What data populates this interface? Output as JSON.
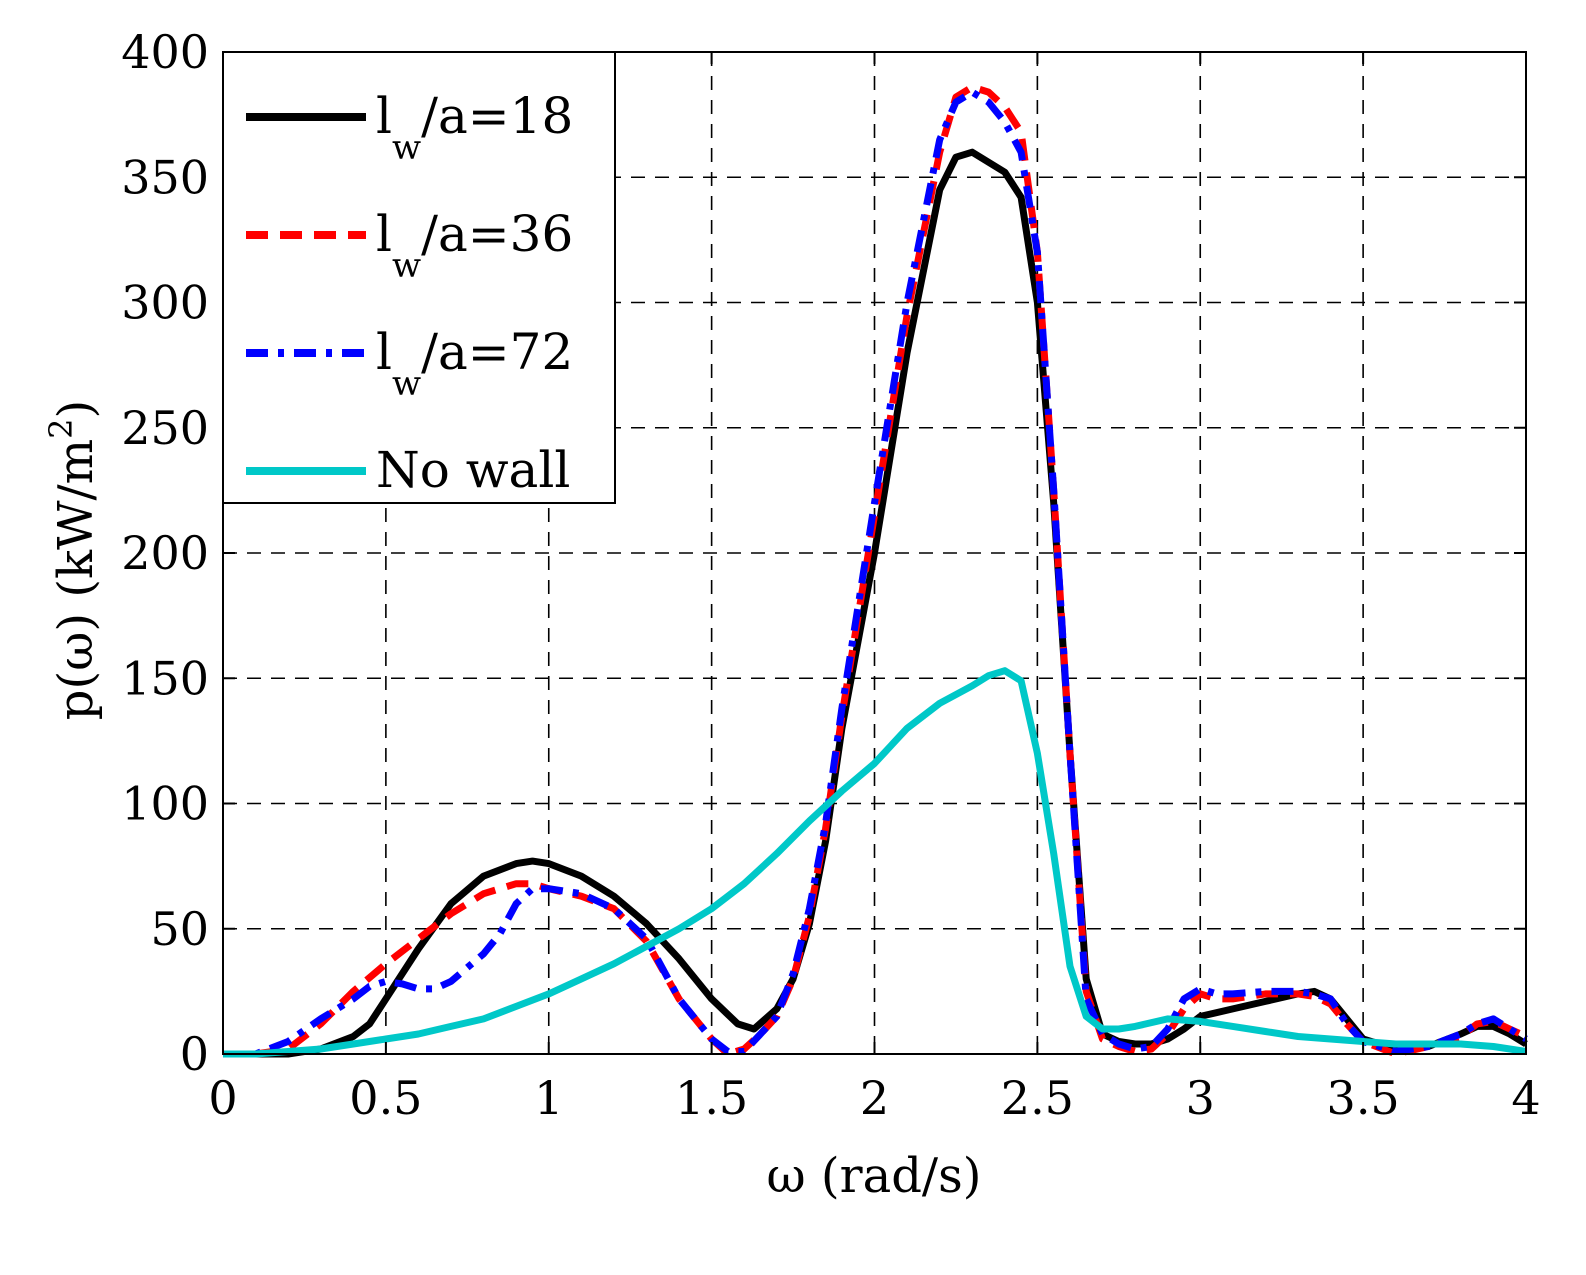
{
  "chart_data": {
    "type": "line",
    "title": "",
    "xlabel": "ω (rad/s)",
    "ylabel_main": "p(ω) (kW/m",
    "ylabel_sup": "2",
    "ylabel_close": ")",
    "xlim": [
      0,
      4
    ],
    "ylim": [
      0,
      400
    ],
    "grid": true,
    "legend_position": "top-left",
    "xticks": [
      0,
      0.5,
      1,
      1.5,
      2,
      2.5,
      3,
      3.5,
      4
    ],
    "xtick_labels": [
      "0",
      "0.5",
      "1",
      "1.5",
      "2",
      "2.5",
      "3",
      "3.5",
      "4"
    ],
    "yticks": [
      0,
      50,
      100,
      150,
      200,
      250,
      300,
      350,
      400
    ],
    "ytick_labels": [
      "0",
      "50",
      "100",
      "150",
      "200",
      "250",
      "300",
      "350",
      "400"
    ],
    "series": [
      {
        "name": "lw/a=18",
        "label_main": "l",
        "label_sub": "w",
        "label_rest": "/a=18",
        "color": "#000000",
        "dash": "solid",
        "points": [
          [
            0,
            0
          ],
          [
            0.1,
            0
          ],
          [
            0.2,
            0
          ],
          [
            0.3,
            2
          ],
          [
            0.4,
            7
          ],
          [
            0.45,
            12
          ],
          [
            0.5,
            22
          ],
          [
            0.6,
            42
          ],
          [
            0.7,
            60
          ],
          [
            0.8,
            71
          ],
          [
            0.9,
            76
          ],
          [
            0.95,
            77
          ],
          [
            1.0,
            76
          ],
          [
            1.1,
            71
          ],
          [
            1.2,
            63
          ],
          [
            1.3,
            52
          ],
          [
            1.4,
            38
          ],
          [
            1.5,
            22
          ],
          [
            1.58,
            12
          ],
          [
            1.63,
            10
          ],
          [
            1.7,
            18
          ],
          [
            1.75,
            30
          ],
          [
            1.8,
            52
          ],
          [
            1.85,
            85
          ],
          [
            1.9,
            130
          ],
          [
            2.0,
            200
          ],
          [
            2.1,
            280
          ],
          [
            2.2,
            345
          ],
          [
            2.25,
            358
          ],
          [
            2.3,
            360
          ],
          [
            2.35,
            356
          ],
          [
            2.4,
            352
          ],
          [
            2.45,
            342
          ],
          [
            2.5,
            300
          ],
          [
            2.55,
            220
          ],
          [
            2.6,
            120
          ],
          [
            2.65,
            30
          ],
          [
            2.7,
            8
          ],
          [
            2.75,
            5
          ],
          [
            2.8,
            4
          ],
          [
            2.85,
            4
          ],
          [
            2.9,
            6
          ],
          [
            2.95,
            10
          ],
          [
            3.0,
            15
          ],
          [
            3.1,
            18
          ],
          [
            3.2,
            21
          ],
          [
            3.3,
            24
          ],
          [
            3.35,
            25
          ],
          [
            3.4,
            22
          ],
          [
            3.45,
            14
          ],
          [
            3.5,
            6
          ],
          [
            3.6,
            2
          ],
          [
            3.7,
            3
          ],
          [
            3.8,
            8
          ],
          [
            3.85,
            11
          ],
          [
            3.9,
            11
          ],
          [
            3.95,
            8
          ],
          [
            4.0,
            4
          ]
        ]
      },
      {
        "name": "lw/a=36",
        "label_main": "l",
        "label_sub": "w",
        "label_rest": "/a=36",
        "color": "#ff0000",
        "dash": "dashed",
        "points": [
          [
            0,
            0
          ],
          [
            0.1,
            0
          ],
          [
            0.2,
            2
          ],
          [
            0.3,
            12
          ],
          [
            0.4,
            25
          ],
          [
            0.5,
            36
          ],
          [
            0.6,
            46
          ],
          [
            0.7,
            56
          ],
          [
            0.8,
            64
          ],
          [
            0.9,
            68
          ],
          [
            0.95,
            68
          ],
          [
            1.0,
            66
          ],
          [
            1.1,
            63
          ],
          [
            1.2,
            58
          ],
          [
            1.3,
            45
          ],
          [
            1.4,
            22
          ],
          [
            1.5,
            6
          ],
          [
            1.55,
            0
          ],
          [
            1.6,
            2
          ],
          [
            1.65,
            8
          ],
          [
            1.7,
            15
          ],
          [
            1.75,
            30
          ],
          [
            1.8,
            55
          ],
          [
            1.85,
            90
          ],
          [
            1.9,
            135
          ],
          [
            2.0,
            215
          ],
          [
            2.1,
            295
          ],
          [
            2.2,
            360
          ],
          [
            2.25,
            382
          ],
          [
            2.3,
            386
          ],
          [
            2.35,
            384
          ],
          [
            2.4,
            378
          ],
          [
            2.45,
            368
          ],
          [
            2.5,
            320
          ],
          [
            2.55,
            225
          ],
          [
            2.6,
            120
          ],
          [
            2.65,
            25
          ],
          [
            2.7,
            6
          ],
          [
            2.75,
            3
          ],
          [
            2.8,
            1
          ],
          [
            2.85,
            2
          ],
          [
            2.9,
            8
          ],
          [
            2.95,
            18
          ],
          [
            3.0,
            24
          ],
          [
            3.05,
            22
          ],
          [
            3.1,
            22
          ],
          [
            3.2,
            24
          ],
          [
            3.3,
            24
          ],
          [
            3.35,
            23
          ],
          [
            3.4,
            20
          ],
          [
            3.45,
            12
          ],
          [
            3.5,
            5
          ],
          [
            3.6,
            0
          ],
          [
            3.7,
            3
          ],
          [
            3.8,
            7
          ],
          [
            3.85,
            12
          ],
          [
            3.9,
            13
          ],
          [
            3.95,
            10
          ],
          [
            4.0,
            7
          ]
        ]
      },
      {
        "name": "lw/a=72",
        "label_main": "l",
        "label_sub": "w",
        "label_rest": "/a=72",
        "color": "#0000ff",
        "dash": "dashdot",
        "points": [
          [
            0,
            0
          ],
          [
            0.1,
            0
          ],
          [
            0.2,
            5
          ],
          [
            0.3,
            14
          ],
          [
            0.4,
            22
          ],
          [
            0.45,
            27
          ],
          [
            0.5,
            29
          ],
          [
            0.55,
            28
          ],
          [
            0.6,
            26
          ],
          [
            0.65,
            26
          ],
          [
            0.7,
            29
          ],
          [
            0.8,
            40
          ],
          [
            0.85,
            48
          ],
          [
            0.9,
            60
          ],
          [
            0.95,
            66
          ],
          [
            1.0,
            66
          ],
          [
            1.1,
            64
          ],
          [
            1.2,
            58
          ],
          [
            1.3,
            46
          ],
          [
            1.4,
            22
          ],
          [
            1.5,
            6
          ],
          [
            1.55,
            1
          ],
          [
            1.6,
            1
          ],
          [
            1.65,
            8
          ],
          [
            1.7,
            15
          ],
          [
            1.75,
            32
          ],
          [
            1.8,
            58
          ],
          [
            1.85,
            92
          ],
          [
            1.9,
            138
          ],
          [
            2.0,
            220
          ],
          [
            2.1,
            300
          ],
          [
            2.2,
            365
          ],
          [
            2.25,
            380
          ],
          [
            2.3,
            384
          ],
          [
            2.35,
            380
          ],
          [
            2.4,
            372
          ],
          [
            2.45,
            360
          ],
          [
            2.5,
            320
          ],
          [
            2.55,
            225
          ],
          [
            2.6,
            120
          ],
          [
            2.65,
            22
          ],
          [
            2.7,
            8
          ],
          [
            2.75,
            4
          ],
          [
            2.8,
            2
          ],
          [
            2.85,
            3
          ],
          [
            2.9,
            10
          ],
          [
            2.95,
            22
          ],
          [
            3.0,
            26
          ],
          [
            3.05,
            24
          ],
          [
            3.1,
            24
          ],
          [
            3.2,
            25
          ],
          [
            3.3,
            25
          ],
          [
            3.35,
            24
          ],
          [
            3.4,
            22
          ],
          [
            3.45,
            12
          ],
          [
            3.5,
            5
          ],
          [
            3.6,
            1
          ],
          [
            3.7,
            3
          ],
          [
            3.8,
            8
          ],
          [
            3.85,
            12
          ],
          [
            3.9,
            14
          ],
          [
            3.95,
            10
          ],
          [
            4.0,
            6
          ]
        ]
      },
      {
        "name": "No wall",
        "label_main": "No wall",
        "label_sub": "",
        "label_rest": "",
        "color": "#00c8c8",
        "dash": "solid",
        "points": [
          [
            0,
            0
          ],
          [
            0.1,
            0
          ],
          [
            0.2,
            1
          ],
          [
            0.3,
            2
          ],
          [
            0.4,
            4
          ],
          [
            0.5,
            6
          ],
          [
            0.6,
            8
          ],
          [
            0.7,
            11
          ],
          [
            0.8,
            14
          ],
          [
            0.9,
            19
          ],
          [
            1.0,
            24
          ],
          [
            1.1,
            30
          ],
          [
            1.2,
            36
          ],
          [
            1.3,
            43
          ],
          [
            1.4,
            50
          ],
          [
            1.5,
            58
          ],
          [
            1.6,
            68
          ],
          [
            1.7,
            80
          ],
          [
            1.8,
            93
          ],
          [
            1.9,
            105
          ],
          [
            2.0,
            116
          ],
          [
            2.1,
            130
          ],
          [
            2.2,
            140
          ],
          [
            2.3,
            147
          ],
          [
            2.35,
            151
          ],
          [
            2.4,
            153
          ],
          [
            2.45,
            149
          ],
          [
            2.5,
            120
          ],
          [
            2.55,
            80
          ],
          [
            2.6,
            35
          ],
          [
            2.65,
            15
          ],
          [
            2.7,
            10
          ],
          [
            2.75,
            10
          ],
          [
            2.8,
            11
          ],
          [
            2.9,
            14
          ],
          [
            3.0,
            13
          ],
          [
            3.1,
            11
          ],
          [
            3.2,
            9
          ],
          [
            3.3,
            7
          ],
          [
            3.4,
            6
          ],
          [
            3.5,
            5
          ],
          [
            3.6,
            4
          ],
          [
            3.7,
            4
          ],
          [
            3.8,
            4
          ],
          [
            3.9,
            3
          ],
          [
            4.0,
            1
          ]
        ]
      }
    ]
  }
}
